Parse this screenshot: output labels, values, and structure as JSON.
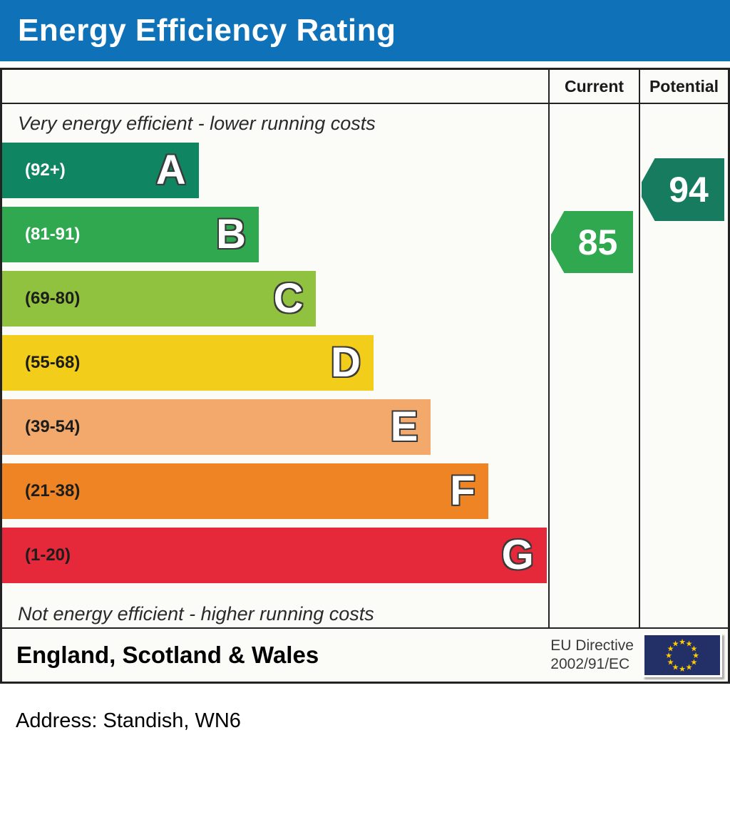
{
  "header": {
    "title": "Energy Efficiency Rating"
  },
  "table": {
    "columns": {
      "current": "Current",
      "potential": "Potential"
    },
    "top_note": "Very energy efficient - lower running costs",
    "bottom_note": "Not energy efficient - higher running costs",
    "current": {
      "value": "85",
      "band": "B",
      "color": "#2fa84f"
    },
    "potential": {
      "value": "94",
      "band": "A",
      "color": "#177b5f"
    }
  },
  "footer": {
    "region": "England, Scotland & Wales",
    "directive_line1": "EU Directive",
    "directive_line2": "2002/91/EC",
    "flag": "eu-flag"
  },
  "address": {
    "text": "Address: Standish, WN6"
  },
  "chart_data": {
    "type": "bar",
    "title": "Energy Efficiency Rating",
    "categories": [
      "A",
      "B",
      "C",
      "D",
      "E",
      "F",
      "G"
    ],
    "band_ranges": [
      "(92+)",
      "(81-91)",
      "(69-80)",
      "(55-68)",
      "(39-54)",
      "(21-38)",
      "(1-20)"
    ],
    "band_colors": [
      "#0f8562",
      "#2fa84f",
      "#90c13f",
      "#f2cd1a",
      "#f3a96b",
      "#ee8424",
      "#e6293a"
    ],
    "band_label_colors": [
      "#ffffff",
      "#ffffff",
      "#1d1d1b",
      "#1d1d1b",
      "#1d1d1b",
      "#1d1d1b",
      "#1d1d1b"
    ],
    "bar_width_pct": [
      36,
      47,
      57.5,
      68,
      78.5,
      89,
      99.7
    ],
    "score_scale_min": 1,
    "score_scale_max": 100,
    "current": 85,
    "current_band": "B",
    "potential": 94,
    "potential_band": "A",
    "legend": [
      "Current",
      "Potential"
    ],
    "legend_position": "top-right-columns"
  }
}
